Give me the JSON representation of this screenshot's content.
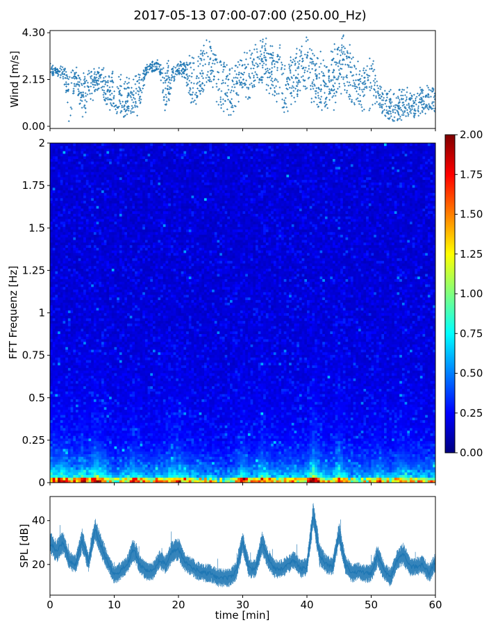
{
  "title": "2017-05-13 07:00-07:00 (250.00_Hz)",
  "chart_data": [
    {
      "type": "scatter",
      "panel": "wind",
      "ylabel": "Wind [m/s]",
      "xlabel": "",
      "xlim": [
        0,
        60
      ],
      "ylim": [
        -0.1,
        4.4
      ],
      "yticks": [
        "0.00",
        "2.15",
        "4.30"
      ],
      "ytick_values": [
        0.0,
        2.15,
        4.3
      ],
      "color": "#1f77b4",
      "envelope_x": [
        0,
        1,
        2,
        3,
        4,
        5,
        6,
        7,
        8,
        9,
        10,
        11,
        12,
        13,
        14,
        15,
        16,
        17,
        18,
        19,
        20,
        21,
        22,
        23,
        24,
        25,
        26,
        27,
        28,
        29,
        30,
        31,
        32,
        33,
        34,
        35,
        36,
        37,
        38,
        39,
        40,
        41,
        42,
        43,
        44,
        45,
        46,
        47,
        48,
        49,
        50,
        51,
        52,
        53,
        54,
        55,
        56,
        57,
        58,
        59,
        60
      ],
      "envelope_low": [
        2.3,
        2.3,
        2.2,
        0.2,
        1.8,
        0.4,
        0.8,
        1.4,
        1.6,
        0.6,
        0.6,
        0.3,
        0.3,
        0.4,
        0.6,
        2.4,
        2.4,
        2.5,
        0.3,
        1.8,
        2.3,
        2.2,
        0.8,
        0.8,
        1.5,
        2.0,
        0.9,
        0.5,
        0.3,
        0.5,
        1.6,
        0.6,
        2.0,
        1.6,
        1.6,
        1.4,
        0.6,
        0.5,
        0.8,
        1.6,
        1.5,
        0.8,
        0.6,
        0.8,
        0.6,
        1.4,
        1.6,
        1.0,
        0.7,
        0.5,
        0.8,
        0.8,
        0.3,
        0.2,
        0.1,
        0.2,
        0.3,
        0.3,
        0.6,
        0.5,
        0.5
      ],
      "envelope_high": [
        2.9,
        2.7,
        2.8,
        2.7,
        2.7,
        2.6,
        2.7,
        2.8,
        2.9,
        2.5,
        2.6,
        2.5,
        2.4,
        2.4,
        2.6,
        2.8,
        3.0,
        3.1,
        3.3,
        2.8,
        2.9,
        3.1,
        3.2,
        3.4,
        4.0,
        3.9,
        3.3,
        3.2,
        2.8,
        3.3,
        3.4,
        3.6,
        3.9,
        4.2,
        4.0,
        3.8,
        3.8,
        3.0,
        3.6,
        3.9,
        4.3,
        3.8,
        3.4,
        2.8,
        3.8,
        4.2,
        4.3,
        3.4,
        2.9,
        2.8,
        3.5,
        2.2,
        1.8,
        1.8,
        1.8,
        1.8,
        1.8,
        1.6,
        1.9,
        2.0,
        1.8
      ]
    },
    {
      "type": "heatmap",
      "panel": "spectrogram",
      "ylabel": "FFT Frequenz [Hz]",
      "xlabel": "",
      "xlim": [
        0,
        60
      ],
      "ylim": [
        0,
        2
      ],
      "yticks": [
        "0",
        "0.25",
        "0.5",
        "0.75",
        "1",
        "1.25",
        "1.5",
        "1.75",
        "2"
      ],
      "ytick_values": [
        0,
        0.25,
        0.5,
        0.75,
        1,
        1.25,
        1.5,
        1.75,
        2
      ],
      "colormap": "jet",
      "color_range": [
        0,
        2
      ],
      "colorbar_ticks": [
        "0.00",
        "0.25",
        "0.50",
        "0.75",
        "1.00",
        "1.25",
        "1.50",
        "1.75",
        "2.00"
      ],
      "colorbar_tick_values": [
        0,
        0.25,
        0.5,
        0.75,
        1.0,
        1.25,
        1.5,
        1.75,
        2.0
      ],
      "colormap_stops": [
        "#00007f",
        "#0000ff",
        "#007fff",
        "#00ffff",
        "#7fff7f",
        "#ffff00",
        "#ff7f00",
        "#ff0000",
        "#7f0000"
      ]
    },
    {
      "type": "line",
      "panel": "spl",
      "ylabel": "SPL [dB]",
      "xlabel": "time [min]",
      "xlim": [
        0,
        60
      ],
      "ylim": [
        6,
        51
      ],
      "yticks": [
        "20",
        "40"
      ],
      "ytick_values": [
        20,
        40
      ],
      "xticks": [
        "0",
        "10",
        "20",
        "30",
        "40",
        "50",
        "60"
      ],
      "xtick_values": [
        0,
        10,
        20,
        30,
        40,
        50,
        60
      ],
      "color": "#1f77b4",
      "x": [
        0,
        1,
        2,
        3,
        4,
        5,
        6,
        7,
        8,
        9,
        10,
        11,
        12,
        13,
        14,
        15,
        16,
        17,
        18,
        19,
        20,
        21,
        22,
        23,
        24,
        25,
        26,
        27,
        28,
        29,
        30,
        31,
        32,
        33,
        34,
        35,
        36,
        37,
        38,
        39,
        40,
        41,
        42,
        43,
        44,
        45,
        46,
        47,
        48,
        49,
        50,
        51,
        52,
        53,
        54,
        55,
        56,
        57,
        58,
        59,
        60
      ],
      "y": [
        30,
        26,
        30,
        22,
        20,
        31,
        21,
        36,
        28,
        21,
        15,
        17,
        20,
        27,
        20,
        17,
        17,
        22,
        20,
        26,
        27,
        21,
        19,
        17,
        16,
        16,
        14,
        14,
        14,
        17,
        30,
        18,
        18,
        30,
        22,
        18,
        18,
        20,
        22,
        18,
        19,
        43,
        24,
        20,
        19,
        34,
        20,
        16,
        17,
        16,
        16,
        24,
        17,
        14,
        22,
        25,
        19,
        19,
        20,
        16,
        21
      ],
      "band": [
        5,
        5,
        5,
        4,
        4,
        5,
        4,
        5,
        5,
        4,
        4,
        4,
        4,
        5,
        4,
        4,
        4,
        4,
        4,
        5,
        5,
        4,
        4,
        4,
        4,
        4,
        4,
        4,
        4,
        4,
        5,
        4,
        4,
        5,
        4,
        4,
        4,
        4,
        4,
        4,
        4,
        6,
        5,
        4,
        4,
        5,
        4,
        4,
        4,
        4,
        4,
        5,
        4,
        4,
        4,
        5,
        4,
        4,
        4,
        4,
        4
      ]
    }
  ]
}
